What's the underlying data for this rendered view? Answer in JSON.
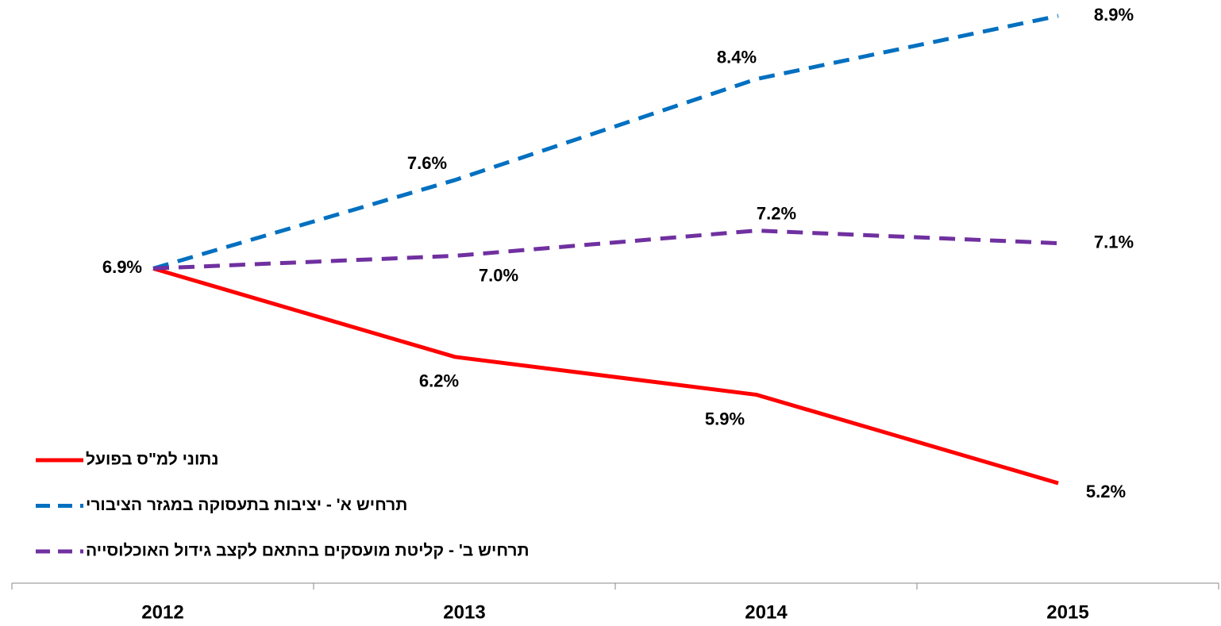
{
  "chart_data": {
    "type": "line",
    "categories": [
      "2012",
      "2013",
      "2014",
      "2015"
    ],
    "series": [
      {
        "name": "נתוני למ\"ס בפועל",
        "color": "#ff0000",
        "dash": false,
        "values": [
          6.9,
          6.2,
          5.9,
          5.2
        ],
        "value_labels": [
          "6.9%",
          "6.2%",
          "5.9%",
          "5.2%"
        ]
      },
      {
        "name": "תרחיש א' - יציבות בתעסוקה במגזר הציבורי",
        "color": "#0070c0",
        "dash": true,
        "values": [
          6.9,
          7.6,
          8.4,
          8.9
        ],
        "value_labels": [
          null,
          "7.6%",
          "8.4%",
          "8.9%"
        ]
      },
      {
        "name": "תרחיש ב' - קליטת מועסקים בהתאם לקצב גידול האוכלוסייה",
        "color": "#7030a0",
        "dash": true,
        "values": [
          6.9,
          7.0,
          7.2,
          7.1
        ],
        "value_labels": [
          null,
          "7.0%",
          "7.2%",
          "7.1%"
        ]
      }
    ],
    "legend": "lower left"
  }
}
